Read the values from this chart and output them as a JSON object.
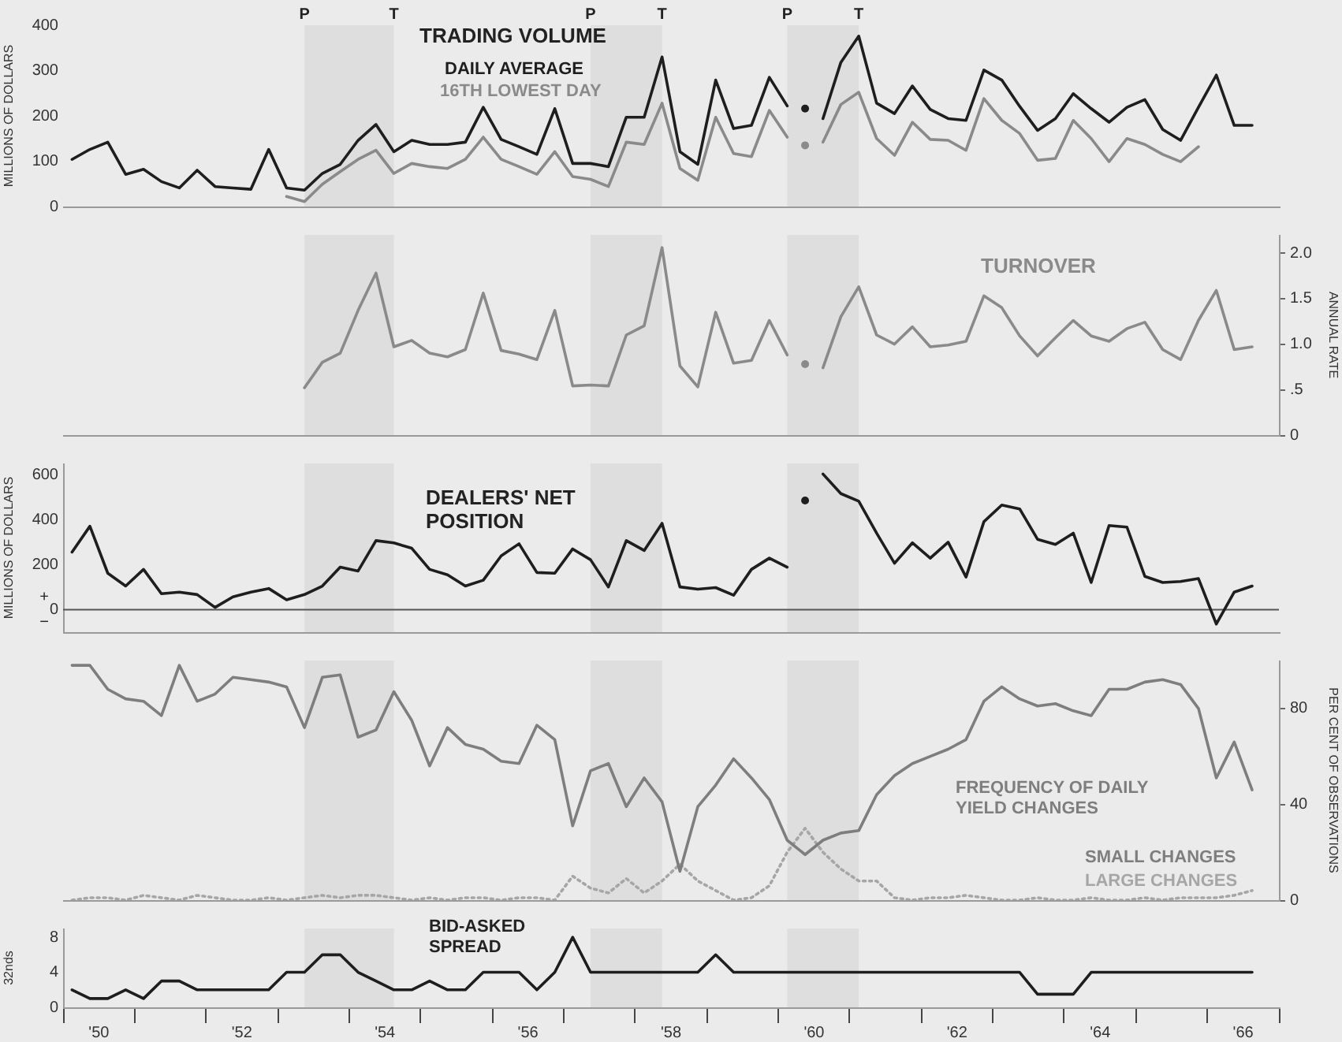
{
  "chart_data": [
    {
      "type": "line",
      "title": "TRADING VOLUME",
      "ylabel": "MILLIONS OF DOLLARS",
      "tick_labels": "y",
      "xlim": [
        49.5,
        66.5
      ],
      "ylim": [
        0,
        400
      ],
      "yticks": [
        0,
        100,
        200,
        300,
        400
      ],
      "x": [
        49.625,
        49.875,
        50.125,
        50.375,
        50.625,
        50.875,
        51.125,
        51.375,
        51.625,
        51.875,
        52.125,
        52.375,
        52.625,
        52.875,
        53.125,
        53.375,
        53.625,
        53.875,
        54.125,
        54.375,
        54.625,
        54.875,
        55.125,
        55.375,
        55.625,
        55.875,
        56.125,
        56.375,
        56.625,
        56.875,
        57.125,
        57.375,
        57.625,
        57.875,
        58.125,
        58.375,
        58.625,
        58.875,
        59.125,
        59.375,
        59.625,
        59.875,
        60.125,
        60.375,
        60.625,
        60.875,
        61.125,
        61.375,
        61.625,
        61.875,
        62.125,
        62.375,
        62.625,
        62.875,
        63.125,
        63.375,
        63.625,
        63.875,
        64.125,
        64.375,
        64.625,
        64.875,
        65.125,
        65.375,
        65.625,
        65.875,
        66.125
      ],
      "series": [
        {
          "name": "DAILY AVERAGE",
          "color": "#1e1e1e",
          "values": [
            104,
            126,
            142,
            71,
            82,
            55,
            41,
            80,
            44,
            41,
            38,
            126,
            41,
            36,
            73,
            93,
            146,
            181,
            121,
            146,
            137,
            137,
            142,
            219,
            148,
            132,
            115,
            216,
            95,
            95,
            88,
            197,
            197,
            330,
            121,
            93,
            279,
            172,
            179,
            285,
            222,
            null,
            194,
            318,
            376,
            228,
            205,
            266,
            214,
            194,
            190,
            301,
            279,
            221,
            168,
            194,
            249,
            216,
            186,
            219,
            236,
            170,
            146,
            219,
            290,
            179,
            179
          ]
        },
        {
          "name": "16TH LOWEST DAY",
          "color": "#8a8a8a",
          "values": [
            null,
            null,
            null,
            null,
            null,
            null,
            null,
            null,
            null,
            null,
            null,
            null,
            22,
            11,
            49,
            77,
            104,
            124,
            73,
            95,
            88,
            84,
            104,
            153,
            104,
            88,
            71,
            121,
            66,
            60,
            44,
            142,
            137,
            228,
            84,
            58,
            197,
            117,
            110,
            212,
            153,
            null,
            142,
            225,
            252,
            150,
            113,
            186,
            148,
            146,
            124,
            238,
            190,
            161,
            102,
            106,
            190,
            150,
            99,
            150,
            137,
            115,
            99,
            132,
            null,
            null,
            null
          ]
        },
        {
          "type": "scatter",
          "color": "#1e1e1e",
          "values": [
            null,
            null,
            null,
            null,
            null,
            null,
            null,
            null,
            null,
            null,
            null,
            null,
            null,
            null,
            null,
            null,
            null,
            null,
            null,
            null,
            null,
            null,
            null,
            null,
            null,
            null,
            null,
            null,
            null,
            null,
            null,
            null,
            null,
            null,
            null,
            null,
            null,
            null,
            null,
            null,
            null,
            216,
            null,
            null,
            null,
            null,
            null,
            null,
            null,
            null,
            null,
            null,
            null,
            null,
            null,
            null,
            null,
            null,
            null,
            null,
            null,
            null,
            null,
            null,
            null,
            null,
            null
          ]
        },
        {
          "type": "scatter",
          "color": "#8a8a8a",
          "values": [
            null,
            null,
            null,
            null,
            null,
            null,
            null,
            null,
            null,
            null,
            null,
            null,
            null,
            null,
            null,
            null,
            null,
            null,
            null,
            null,
            null,
            null,
            null,
            null,
            null,
            null,
            null,
            null,
            null,
            null,
            null,
            null,
            null,
            null,
            null,
            null,
            null,
            null,
            null,
            null,
            null,
            135,
            null,
            null,
            null,
            null,
            null,
            null,
            null,
            null,
            null,
            null,
            null,
            null,
            null,
            null,
            null,
            null,
            null,
            null,
            null,
            null,
            null,
            null,
            null,
            null,
            null
          ]
        }
      ],
      "bands": [
        {
          "axis": "x",
          "from": 52.875,
          "to": 54.125,
          "color": "#dedede"
        },
        {
          "axis": "x",
          "from": 56.875,
          "to": 57.875,
          "color": "#dedede"
        },
        {
          "axis": "x",
          "from": 59.625,
          "to": 60.625,
          "color": "#dedede"
        }
      ],
      "annotations": [
        "P",
        "T",
        "P",
        "T",
        "P",
        "T"
      ]
    },
    {
      "type": "line",
      "title": "TURNOVER",
      "y2label": "ANNUAL RATE",
      "tick_labels": "y",
      "xlim": [
        49.5,
        66.5
      ],
      "y2lim": [
        0,
        2.2
      ],
      "y2ticks": [
        0,
        {
          "value": 0.5,
          "label": ".5"
        },
        {
          "value": 1,
          "label": "1.0"
        },
        1.5,
        {
          "value": 2,
          "label": "2.0"
        }
      ],
      "x": [
        52.875,
        53.125,
        53.375,
        53.625,
        53.875,
        54.125,
        54.375,
        54.625,
        54.875,
        55.125,
        55.375,
        55.625,
        55.875,
        56.125,
        56.375,
        56.625,
        56.875,
        57.125,
        57.375,
        57.625,
        57.875,
        58.125,
        58.375,
        58.625,
        58.875,
        59.125,
        59.375,
        59.625,
        59.875,
        60.125,
        60.375,
        60.625,
        60.875,
        61.125,
        61.375,
        61.625,
        61.875,
        62.125,
        62.375,
        62.625,
        62.875,
        63.125,
        63.375,
        63.625,
        63.875,
        64.125,
        64.375,
        64.625,
        64.875,
        65.125,
        65.375,
        65.625,
        65.875,
        66.125
      ],
      "series": [
        {
          "color": "#8a8a8a",
          "axis": "y2",
          "values": [
            0.52,
            0.8,
            0.9,
            1.37,
            1.78,
            0.97,
            1.04,
            0.9,
            0.86,
            0.94,
            1.56,
            0.93,
            0.89,
            0.83,
            1.37,
            0.54,
            0.55,
            0.54,
            1.1,
            1.2,
            2.06,
            0.76,
            0.53,
            1.35,
            0.79,
            0.82,
            1.26,
            0.88,
            null,
            0.74,
            1.3,
            1.63,
            1.1,
            1.0,
            1.19,
            0.97,
            0.99,
            1.03,
            1.53,
            1.4,
            1.09,
            0.87,
            1.07,
            1.26,
            1.09,
            1.03,
            1.17,
            1.24,
            0.94,
            0.83,
            1.26,
            1.59,
            0.94,
            0.97
          ]
        },
        {
          "type": "scatter",
          "color": "#8a8a8a",
          "axis": "y2",
          "values": [
            null,
            null,
            null,
            null,
            null,
            null,
            null,
            null,
            null,
            null,
            null,
            null,
            null,
            null,
            null,
            null,
            null,
            null,
            null,
            null,
            null,
            null,
            null,
            null,
            null,
            null,
            null,
            null,
            0.78,
            null,
            null,
            null,
            null,
            null,
            null,
            null,
            null,
            null,
            null,
            null,
            null,
            null,
            null,
            null,
            null,
            null,
            null,
            null,
            null,
            null,
            null,
            null,
            null,
            null
          ]
        }
      ],
      "bands": [
        {
          "axis": "x",
          "from": 52.875,
          "to": 54.125,
          "color": "#dedede"
        },
        {
          "axis": "x",
          "from": 56.875,
          "to": 57.875,
          "color": "#dedede"
        },
        {
          "axis": "x",
          "from": 59.625,
          "to": 60.625,
          "color": "#dedede"
        }
      ]
    },
    {
      "type": "line",
      "title": "DEALERS' NET POSITION",
      "ylabel": "MILLIONS OF DOLLARS",
      "tick_labels": "y",
      "xlim": [
        49.5,
        66.5
      ],
      "ylim": [
        -100,
        650
      ],
      "yticks": [
        0,
        200,
        400,
        600
      ],
      "x": [
        49.625,
        49.875,
        50.125,
        50.375,
        50.625,
        50.875,
        51.125,
        51.375,
        51.625,
        51.875,
        52.125,
        52.375,
        52.625,
        52.875,
        53.125,
        53.375,
        53.625,
        53.875,
        54.125,
        54.375,
        54.625,
        54.875,
        55.125,
        55.375,
        55.625,
        55.875,
        56.125,
        56.375,
        56.625,
        56.875,
        57.125,
        57.375,
        57.625,
        57.875,
        58.125,
        58.375,
        58.625,
        58.875,
        59.125,
        59.375,
        59.625,
        59.875,
        60.125,
        60.375,
        60.625,
        60.875,
        61.125,
        61.375,
        61.625,
        61.875,
        62.125,
        62.375,
        62.625,
        62.875,
        63.125,
        63.375,
        63.625,
        63.875,
        64.125,
        64.375,
        64.625,
        64.875,
        65.125,
        65.375,
        65.625,
        65.875,
        66.125
      ],
      "series": [
        {
          "color": "#1e1e1e",
          "values": [
            256,
            371,
            162,
            105,
            179,
            71,
            78,
            67,
            10,
            57,
            78,
            94,
            44,
            67,
            105,
            189,
            172,
            307,
            297,
            273,
            179,
            155,
            105,
            131,
            239,
            293,
            165,
            162,
            270,
            222,
            101,
            307,
            263,
            384,
            101,
            91,
            98,
            64,
            179,
            229,
            189,
            null,
            603,
            516,
            482,
            340,
            206,
            297,
            229,
            300,
            145,
            391,
            465,
            448,
            313,
            290,
            340,
            121,
            374,
            367,
            148,
            121,
            125,
            138,
            -64,
            78,
            105
          ]
        },
        {
          "type": "scatter",
          "color": "#1e1e1e",
          "values": [
            null,
            null,
            null,
            null,
            null,
            null,
            null,
            null,
            null,
            null,
            null,
            null,
            null,
            null,
            null,
            null,
            null,
            null,
            null,
            null,
            null,
            null,
            null,
            null,
            null,
            null,
            null,
            null,
            null,
            null,
            null,
            null,
            null,
            null,
            null,
            null,
            null,
            null,
            null,
            null,
            null,
            485,
            null,
            null,
            null,
            null,
            null,
            null,
            null,
            null,
            null,
            null,
            null,
            null,
            null,
            null,
            null,
            null,
            null,
            null,
            null,
            null,
            null,
            null,
            null,
            null,
            null
          ]
        }
      ],
      "ref_lines": [
        {
          "axis": "y",
          "value": 0,
          "color": "#555555"
        }
      ],
      "bands": [
        {
          "axis": "x",
          "from": 52.875,
          "to": 54.125,
          "color": "#dedede"
        },
        {
          "axis": "x",
          "from": 56.875,
          "to": 57.875,
          "color": "#dedede"
        },
        {
          "axis": "x",
          "from": 59.625,
          "to": 60.625,
          "color": "#dedede"
        }
      ],
      "annotations": [
        "+",
        "−"
      ]
    },
    {
      "type": "line",
      "title": "FREQUENCY OF DAILY YIELD CHANGES",
      "y2label": "PER CENT OF OBSERVATIONS",
      "tick_labels": "y",
      "xlim": [
        49.5,
        66.5
      ],
      "y2lim": [
        0,
        100
      ],
      "y2ticks": [
        0,
        40,
        80
      ],
      "x": [
        49.625,
        49.875,
        50.125,
        50.375,
        50.625,
        50.875,
        51.125,
        51.375,
        51.625,
        51.875,
        52.125,
        52.375,
        52.625,
        52.875,
        53.125,
        53.375,
        53.625,
        53.875,
        54.125,
        54.375,
        54.625,
        54.875,
        55.125,
        55.375,
        55.625,
        55.875,
        56.125,
        56.375,
        56.625,
        56.875,
        57.125,
        57.375,
        57.625,
        57.875,
        58.125,
        58.375,
        58.625,
        58.875,
        59.125,
        59.375,
        59.625,
        59.875,
        60.125,
        60.375,
        60.625,
        60.875,
        61.125,
        61.375,
        61.625,
        61.875,
        62.125,
        62.375,
        62.625,
        62.875,
        63.125,
        63.375,
        63.625,
        63.875,
        64.125,
        64.375,
        64.625,
        64.875,
        65.125,
        65.375,
        65.625,
        65.875,
        66.125
      ],
      "series": [
        {
          "name": "SMALL CHANGES",
          "color": "#7e7e7e",
          "axis": "y2",
          "values": [
            98,
            98,
            88,
            84,
            83,
            77,
            98,
            83,
            86,
            93,
            92,
            91,
            89,
            72,
            93,
            94,
            68,
            71,
            87,
            75,
            56,
            72,
            65,
            63,
            58,
            57,
            73,
            67,
            31,
            54,
            57,
            39,
            51,
            41,
            12,
            39,
            48,
            59,
            51,
            42,
            25,
            19,
            25,
            28,
            29,
            44,
            52,
            57,
            60,
            63,
            67,
            83,
            89,
            84,
            81,
            82,
            79,
            77,
            88,
            88,
            91,
            92,
            90,
            80,
            51,
            66,
            46
          ]
        },
        {
          "name": "LARGE CHANGES",
          "color": "#a6a6a6",
          "axis": "y2",
          "line_style": "dotted",
          "values": [
            0,
            1,
            1,
            0,
            2,
            1,
            0,
            2,
            1,
            0,
            0,
            1,
            0,
            1,
            2,
            1,
            2,
            2,
            1,
            0,
            1,
            0,
            1,
            1,
            0,
            1,
            1,
            0,
            10,
            5,
            3,
            9,
            3,
            8,
            15,
            8,
            4,
            0,
            1,
            6,
            20,
            30,
            20,
            13,
            8,
            8,
            1,
            0,
            1,
            1,
            2,
            1,
            0,
            0,
            1,
            0,
            0,
            1,
            0,
            0,
            1,
            0,
            1,
            1,
            1,
            2,
            4
          ]
        }
      ],
      "bands": [
        {
          "axis": "x",
          "from": 52.875,
          "to": 54.125,
          "color": "#dedede"
        },
        {
          "axis": "x",
          "from": 56.875,
          "to": 57.875,
          "color": "#dedede"
        },
        {
          "axis": "x",
          "from": 59.625,
          "to": 60.625,
          "color": "#dedede"
        }
      ]
    },
    {
      "type": "line",
      "title": "BID-ASKED SPREAD",
      "ylabel": "32nds",
      "xlim": [
        49.5,
        66.5
      ],
      "ylim": [
        0,
        9
      ],
      "yticks": [
        0,
        4,
        8
      ],
      "xticks": [
        {
          "value": 49.5,
          "label": null
        },
        {
          "value": 50,
          "label": "'50"
        },
        {
          "value": 50.5,
          "label": null
        },
        {
          "value": 51.5,
          "label": null
        },
        {
          "value": 52,
          "label": "'52"
        },
        {
          "value": 52.5,
          "label": null
        },
        {
          "value": 53.5,
          "label": null
        },
        {
          "value": 54,
          "label": "'54"
        },
        {
          "value": 54.5,
          "label": null
        },
        {
          "value": 55.5,
          "label": null
        },
        {
          "value": 56,
          "label": "'56"
        },
        {
          "value": 56.5,
          "label": null
        },
        {
          "value": 57.5,
          "label": null
        },
        {
          "value": 58,
          "label": "'58"
        },
        {
          "value": 58.5,
          "label": null
        },
        {
          "value": 59.5,
          "label": null
        },
        {
          "value": 60,
          "label": "'60"
        },
        {
          "value": 60.5,
          "label": null
        },
        {
          "value": 61.5,
          "label": null
        },
        {
          "value": 62,
          "label": "'62"
        },
        {
          "value": 62.5,
          "label": null
        },
        {
          "value": 63.5,
          "label": null
        },
        {
          "value": 64,
          "label": "'64"
        },
        {
          "value": 64.5,
          "label": null
        },
        {
          "value": 65.5,
          "label": null
        },
        {
          "value": 66,
          "label": "'66"
        },
        {
          "value": 66.5,
          "label": null
        }
      ],
      "x": [
        49.625,
        49.875,
        50.125,
        50.375,
        50.625,
        50.875,
        51.125,
        51.375,
        51.625,
        51.875,
        52.125,
        52.375,
        52.625,
        52.875,
        53.125,
        53.375,
        53.625,
        53.875,
        54.125,
        54.375,
        54.625,
        54.875,
        55.125,
        55.375,
        55.625,
        55.875,
        56.125,
        56.375,
        56.625,
        56.875,
        57.125,
        57.375,
        57.625,
        57.875,
        58.125,
        58.375,
        58.625,
        58.875,
        59.125,
        59.375,
        59.625,
        59.875,
        60.125,
        60.375,
        60.625,
        60.875,
        61.125,
        61.375,
        61.625,
        61.875,
        62.125,
        62.375,
        62.625,
        62.875,
        63.125,
        63.375,
        63.625,
        63.875,
        64.125,
        64.375,
        64.625,
        64.875,
        65.125,
        65.375,
        65.625,
        65.875,
        66.125
      ],
      "series": [
        {
          "color": "#1e1e1e",
          "values": [
            2,
            1,
            1,
            2,
            1,
            3,
            3,
            2,
            2,
            2,
            2,
            2,
            4,
            4,
            6,
            6,
            4,
            3,
            2,
            2,
            3,
            2,
            2,
            4,
            4,
            4,
            2,
            4,
            8,
            4,
            4,
            4,
            4,
            4,
            4,
            4,
            6,
            4,
            4,
            4,
            4,
            4,
            4,
            4,
            4,
            4,
            4,
            4,
            4,
            4,
            4,
            4,
            4,
            4,
            1.5,
            1.5,
            1.5,
            4,
            4,
            4,
            4,
            4,
            4,
            4,
            4,
            4,
            4
          ]
        }
      ],
      "bands": [
        {
          "axis": "x",
          "from": 52.875,
          "to": 54.125,
          "color": "#dedede"
        },
        {
          "axis": "x",
          "from": 56.875,
          "to": 57.875,
          "color": "#dedede"
        },
        {
          "axis": "x",
          "from": 59.625,
          "to": 60.625,
          "color": "#dedede"
        }
      ]
    }
  ]
}
